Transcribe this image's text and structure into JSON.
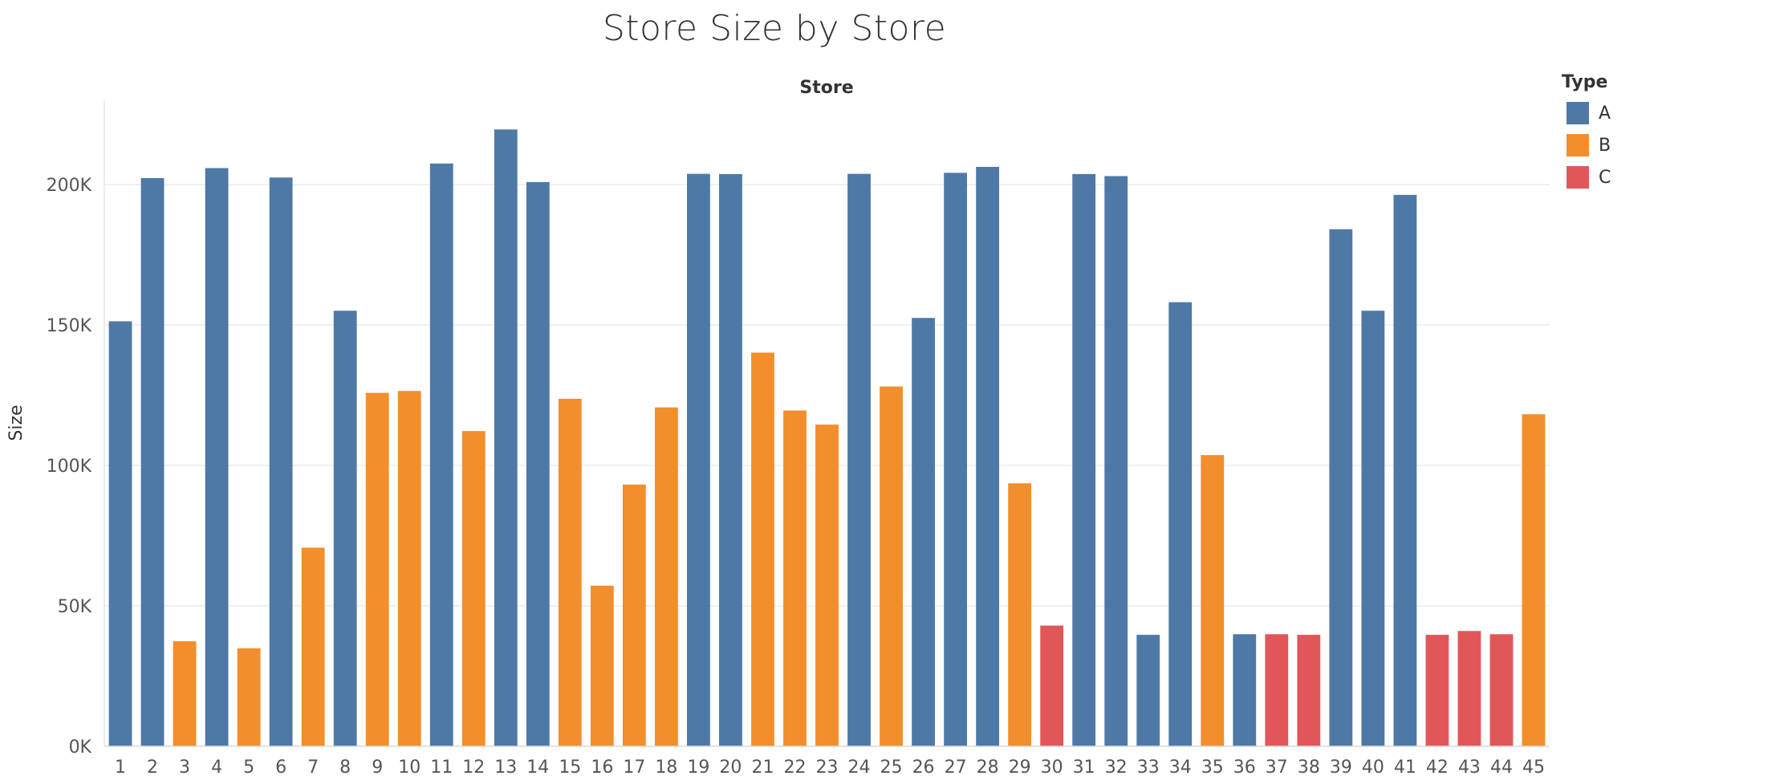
{
  "title": "Store Size by Store",
  "chart_data": {
    "type": "bar",
    "title": "Store Size by Store",
    "xlabel": "Store",
    "ylabel": "Size",
    "ylim": [
      0,
      230000
    ],
    "yticks": [
      0,
      50000,
      100000,
      150000,
      200000
    ],
    "ytick_labels": [
      "0K",
      "50K",
      "100K",
      "150K",
      "200K"
    ],
    "grid": true,
    "legend_position": "top-right",
    "legend": {
      "title": "Type",
      "items": [
        {
          "label": "A",
          "color": "#4e79a7"
        },
        {
          "label": "B",
          "color": "#f28e2b"
        },
        {
          "label": "C",
          "color": "#e15759"
        }
      ]
    },
    "categories": [
      "1",
      "2",
      "3",
      "4",
      "5",
      "6",
      "7",
      "8",
      "9",
      "10",
      "11",
      "12",
      "13",
      "14",
      "15",
      "16",
      "17",
      "18",
      "19",
      "20",
      "21",
      "22",
      "23",
      "24",
      "25",
      "26",
      "27",
      "28",
      "29",
      "30",
      "31",
      "32",
      "33",
      "34",
      "35",
      "36",
      "37",
      "38",
      "39",
      "40",
      "41",
      "42",
      "43",
      "44",
      "45"
    ],
    "types": [
      "A",
      "A",
      "B",
      "A",
      "B",
      "A",
      "B",
      "A",
      "B",
      "B",
      "A",
      "B",
      "A",
      "A",
      "B",
      "B",
      "B",
      "B",
      "A",
      "A",
      "B",
      "B",
      "B",
      "A",
      "B",
      "A",
      "A",
      "A",
      "B",
      "C",
      "A",
      "A",
      "A",
      "A",
      "B",
      "A",
      "C",
      "C",
      "A",
      "A",
      "A",
      "C",
      "C",
      "C",
      "B"
    ],
    "values": [
      151315,
      202307,
      37392,
      205863,
      34875,
      202505,
      70713,
      155078,
      125833,
      126512,
      207499,
      112238,
      219622,
      200898,
      123737,
      57197,
      93188,
      120653,
      203819,
      203742,
      140167,
      119557,
      114533,
      203819,
      128107,
      152513,
      204184,
      206302,
      93638,
      42988,
      203750,
      203007,
      39690,
      158114,
      103681,
      39910,
      39910,
      39690,
      184109,
      155083,
      196321,
      39690,
      41062,
      39910,
      118221
    ]
  }
}
